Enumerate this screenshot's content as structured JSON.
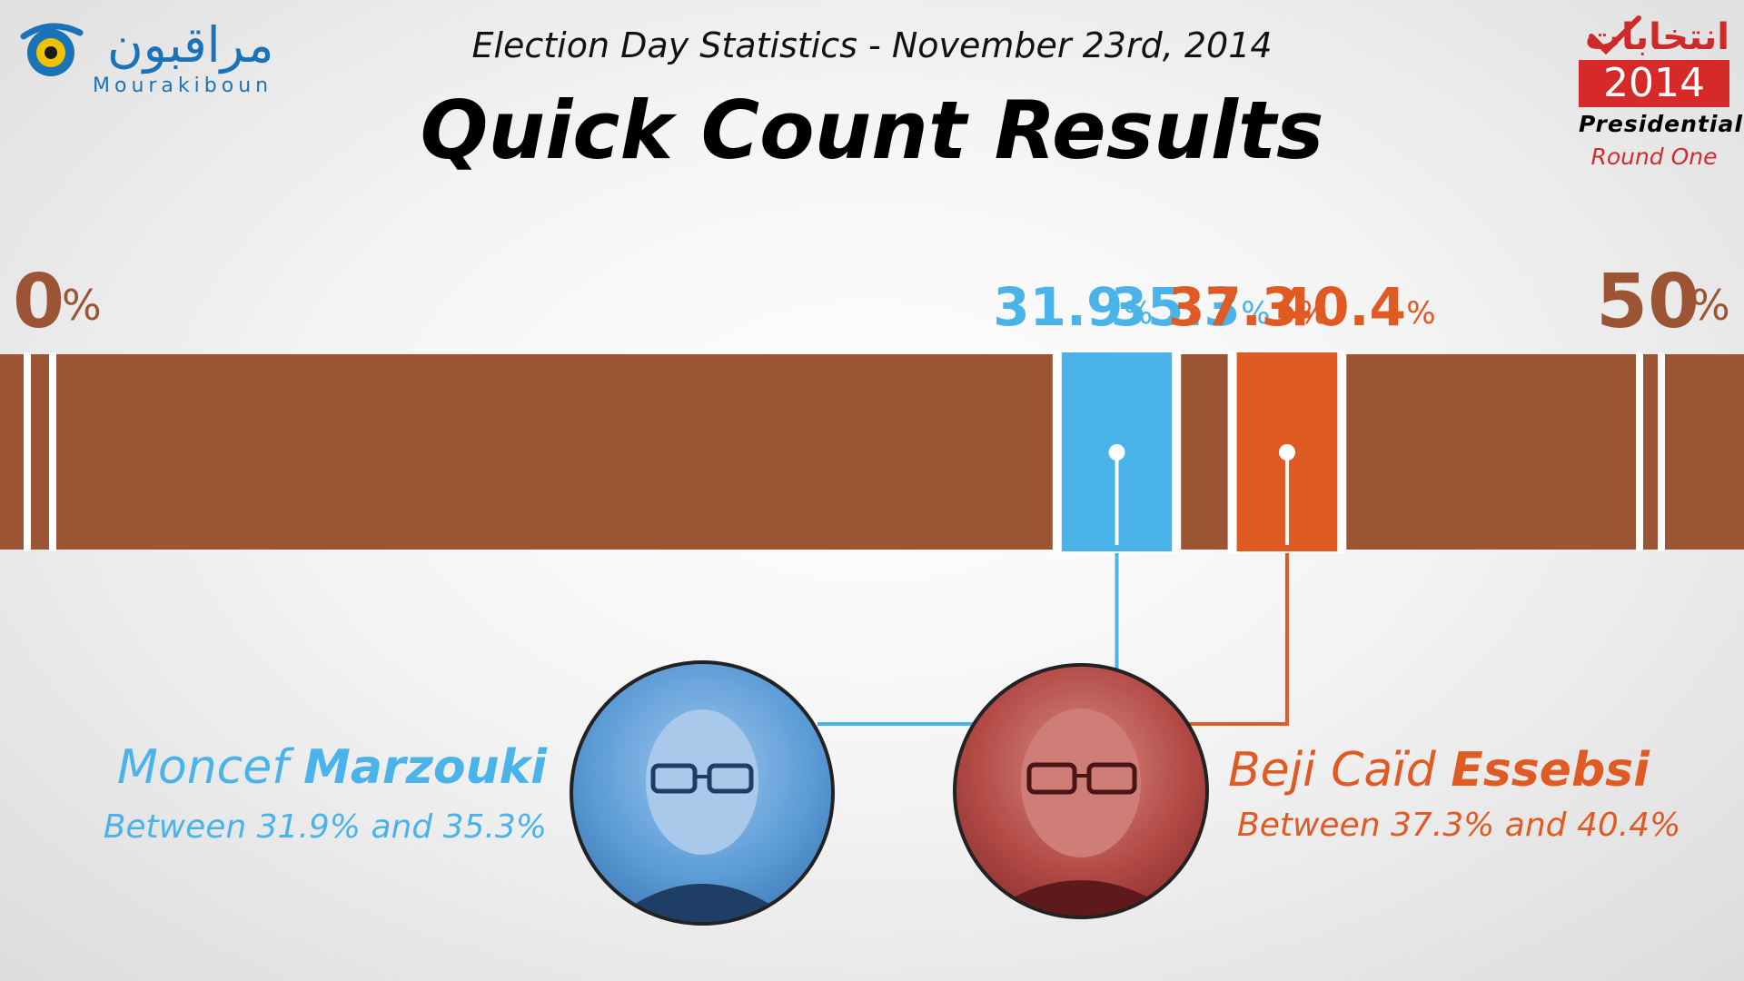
{
  "branding": {
    "logo_arabic": "مراقبون",
    "logo_latin": "Mourakiboun",
    "badge_arabic": "انتخابات",
    "badge_year": "2014",
    "badge_type": "Presidential",
    "badge_round": "Round One"
  },
  "header": {
    "subtitle": "Election Day Statistics - November 23rd, 2014",
    "title": "Quick Count Results"
  },
  "colors": {
    "bar": "#9b5535",
    "marzouki": "#4ab3ea",
    "essebsi": "#e05a24",
    "axis_text": "#9b5535"
  },
  "chart_data": {
    "type": "bar",
    "axis": {
      "min": 0,
      "max": 50,
      "min_label": "0",
      "max_label": "50",
      "unit": "%"
    },
    "series": [
      {
        "name": "Moncef Marzouki",
        "low": 31.9,
        "high": 35.3,
        "low_label": "31.9",
        "high_label": "35.3",
        "color": "#4ab3ea"
      },
      {
        "name": "Beji Caïd Essebsi",
        "low": 37.3,
        "high": 40.4,
        "low_label": "37.3",
        "high_label": "40.4",
        "color": "#e05a24"
      }
    ]
  },
  "candidates": [
    {
      "first": "Moncef",
      "last": "Marzouki",
      "range_text": "Between 31.9% and 35.3%",
      "color": "#4ab3ea"
    },
    {
      "first": "Beji Caïd",
      "last": "Essebsi",
      "range_text": "Between 37.3% and 40.4%",
      "color": "#e05a24"
    }
  ]
}
